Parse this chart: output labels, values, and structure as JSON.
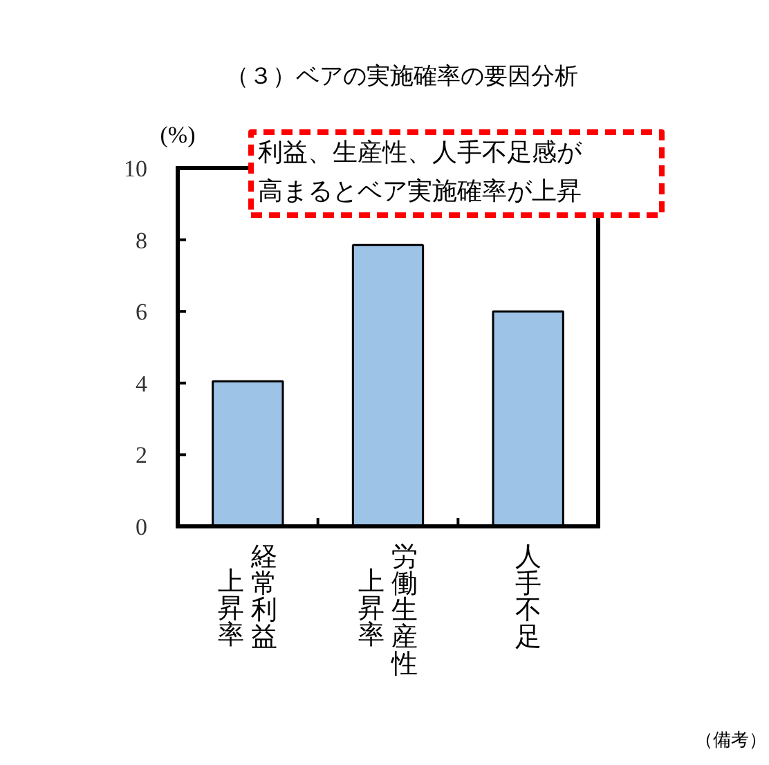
{
  "chart_data": {
    "type": "bar",
    "title": "（３）ベアの実施確率の要因分析",
    "ylabel": "(%)",
    "categories": [
      "経常利益上昇率",
      "労働生産性上昇率",
      "人手不足"
    ],
    "values": [
      4.05,
      7.85,
      6.0
    ],
    "color": "#9dc3e6",
    "ylim": [
      0,
      10
    ],
    "yticks": [
      0,
      2,
      4,
      6,
      8,
      10
    ],
    "grid": false,
    "annotations": [
      "利益、生産性、人手不足感が高まるとベア実施確率が上昇",
      "（備考）"
    ]
  }
}
